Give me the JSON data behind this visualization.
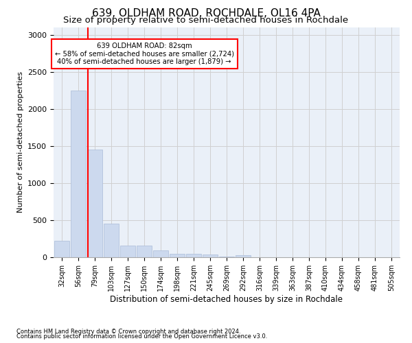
{
  "title": "639, OLDHAM ROAD, ROCHDALE, OL16 4PA",
  "subtitle": "Size of property relative to semi-detached houses in Rochdale",
  "xlabel": "Distribution of semi-detached houses by size in Rochdale",
  "ylabel": "Number of semi-detached properties",
  "footnote1": "Contains HM Land Registry data © Crown copyright and database right 2024.",
  "footnote2": "Contains public sector information licensed under the Open Government Licence v3.0.",
  "bin_labels": [
    "32sqm",
    "56sqm",
    "79sqm",
    "103sqm",
    "127sqm",
    "150sqm",
    "174sqm",
    "198sqm",
    "221sqm",
    "245sqm",
    "269sqm",
    "292sqm",
    "316sqm",
    "339sqm",
    "363sqm",
    "387sqm",
    "410sqm",
    "434sqm",
    "458sqm",
    "481sqm",
    "505sqm"
  ],
  "bar_values": [
    218,
    2250,
    1450,
    455,
    155,
    155,
    88,
    50,
    42,
    38,
    5,
    28,
    2,
    0,
    0,
    0,
    0,
    0,
    0,
    0,
    0
  ],
  "bar_color": "#ccd9ee",
  "bar_edge_color": "#aabbd8",
  "grid_color": "#d0d0d0",
  "annotation_line1": "639 OLDHAM ROAD: 82sqm",
  "annotation_line2": "← 58% of semi-detached houses are smaller (2,724)",
  "annotation_line3": "40% of semi-detached houses are larger (1,879) →",
  "vline_color": "red",
  "vline_x": 1.575,
  "ylim": [
    0,
    3100
  ],
  "yticks": [
    0,
    500,
    1000,
    1500,
    2000,
    2500,
    3000
  ],
  "ax_bg_color": "#eaf0f8",
  "background_color": "#ffffff",
  "title_fontsize": 11,
  "subtitle_fontsize": 9.5,
  "bar_width": 0.92
}
